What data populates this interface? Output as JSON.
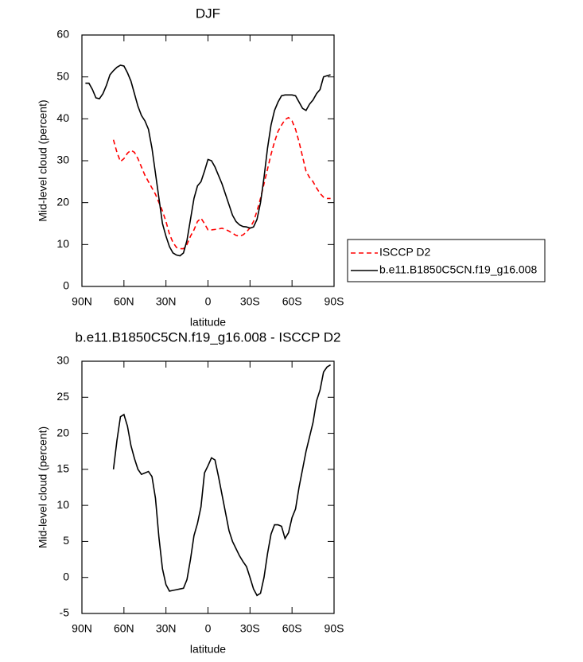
{
  "chart_data": [
    {
      "type": "line",
      "title": "DJF",
      "xlabel": "latitude",
      "ylabel": "Mid-level cloud (percent)",
      "x": [
        87.5,
        85,
        82.5,
        80,
        77.5,
        75,
        72.5,
        70,
        67.5,
        65,
        62.5,
        60,
        57.5,
        55,
        52.5,
        50,
        47.5,
        45,
        42.5,
        40,
        37.5,
        35,
        32.5,
        30,
        27.5,
        25,
        22.5,
        20,
        17.5,
        15,
        12.5,
        10,
        7.5,
        5,
        2.5,
        0,
        -2.5,
        -5,
        -7.5,
        -10,
        -12.5,
        -15,
        -17.5,
        -20,
        -22.5,
        -25,
        -27.5,
        -30,
        -32.5,
        -35,
        -37.5,
        -40,
        -42.5,
        -45,
        -47.5,
        -50,
        -52.5,
        -55,
        -57.5,
        -60,
        -62.5,
        -65,
        -67.5,
        -70,
        -72.5,
        -75,
        -77.5,
        -80,
        -82.5,
        -85,
        -87.5
      ],
      "series": [
        {
          "name": "ISCCP D2",
          "color": "#ff0000",
          "dashed": true,
          "values": [
            null,
            null,
            null,
            null,
            null,
            null,
            null,
            null,
            35,
            32,
            29.8,
            30.5,
            31.8,
            32.5,
            32,
            30.5,
            28.5,
            26.5,
            25,
            23.5,
            22,
            20,
            18,
            15.5,
            12.5,
            10.5,
            9.3,
            9,
            9,
            10,
            12,
            13.5,
            15.5,
            16.3,
            15,
            13.5,
            13.5,
            13.6,
            13.7,
            13.9,
            13.6,
            13.2,
            12.7,
            12.2,
            12,
            12.3,
            13,
            14,
            15.5,
            18,
            21,
            24.5,
            28,
            31.5,
            34.5,
            37,
            38.5,
            39.8,
            40.3,
            39.5,
            37.5,
            34.5,
            31,
            27.5,
            26,
            25,
            23.5,
            22.2,
            21.3,
            21,
            21
          ]
        },
        {
          "name": "b.e11.B1850C5CN.f19_g16.008",
          "color": "#000000",
          "dashed": false,
          "values": [
            48.5,
            48.5,
            47,
            45,
            44.8,
            46,
            48,
            50.5,
            51.5,
            52.3,
            52.8,
            52.6,
            51,
            49,
            46,
            43,
            40.8,
            39.5,
            37.5,
            33,
            27,
            21,
            15,
            12,
            9.5,
            8,
            7.5,
            7.3,
            8,
            11,
            16,
            21,
            24,
            25,
            27.5,
            30.3,
            30,
            28.5,
            26.5,
            24.5,
            22,
            19.5,
            17,
            15.5,
            14.7,
            14.3,
            14.2,
            13.9,
            14.2,
            16,
            20,
            26,
            33,
            38.5,
            42,
            44,
            45.5,
            45.7,
            45.7,
            45.7,
            45.5,
            44,
            42.5,
            42,
            43.5,
            44.5,
            46,
            47,
            50,
            50.3,
            50.5
          ]
        }
      ],
      "xlim": [
        90,
        -90
      ],
      "xticks": [
        {
          "value": 90,
          "label": "90N"
        },
        {
          "value": 60,
          "label": "60N"
        },
        {
          "value": 30,
          "label": "30N"
        },
        0,
        {
          "value": -30,
          "label": "30S"
        },
        {
          "value": -60,
          "label": "60S"
        },
        {
          "value": -90,
          "label": "90S"
        }
      ],
      "ylim": [
        0,
        60
      ],
      "yticks": [
        0,
        10,
        20,
        30,
        40,
        50,
        60
      ],
      "legend": "right"
    },
    {
      "type": "line",
      "title": "b.e11.B1850C5CN.f19_g16.008 - ISCCP D2",
      "xlabel": "latitude",
      "ylabel": "Mid-level cloud (percent)",
      "x": [
        87.5,
        85,
        82.5,
        80,
        77.5,
        75,
        72.5,
        70,
        67.5,
        65,
        62.5,
        60,
        57.5,
        55,
        52.5,
        50,
        47.5,
        45,
        42.5,
        40,
        37.5,
        35,
        32.5,
        30,
        27.5,
        25,
        22.5,
        20,
        17.5,
        15,
        12.5,
        10,
        7.5,
        5,
        2.5,
        0,
        -2.5,
        -5,
        -7.5,
        -10,
        -12.5,
        -15,
        -17.5,
        -20,
        -22.5,
        -25,
        -27.5,
        -30,
        -32.5,
        -35,
        -37.5,
        -40,
        -42.5,
        -45,
        -47.5,
        -50,
        -52.5,
        -55,
        -57.5,
        -60,
        -62.5,
        -65,
        -67.5,
        -70,
        -72.5,
        -75,
        -77.5,
        -80,
        -82.5,
        -85,
        -87.5
      ],
      "series": [
        {
          "color": "#000000",
          "dashed": false,
          "values": [
            null,
            null,
            null,
            null,
            null,
            null,
            null,
            null,
            15,
            19,
            22.3,
            22.6,
            21,
            18.3,
            16.5,
            15,
            14.3,
            14.5,
            14.7,
            14,
            11,
            5.5,
            1.2,
            -1,
            -1.9,
            -1.8,
            -1.7,
            -1.6,
            -1.5,
            -0.3,
            2.5,
            5.8,
            7.5,
            9.8,
            14.5,
            15.5,
            16.6,
            16.3,
            14,
            11.5,
            9,
            6.5,
            5,
            4,
            3,
            2.2,
            1.5,
            0,
            -1.6,
            -2.5,
            -2.2,
            0,
            3.3,
            6,
            7.3,
            7.3,
            7.1,
            5.4,
            6.2,
            8.3,
            9.5,
            12.5,
            15,
            17.5,
            19.5,
            21.5,
            24.5,
            26,
            28.5,
            29.2,
            29.5
          ]
        }
      ],
      "xlim": [
        90,
        -90
      ],
      "xticks": [
        {
          "value": 90,
          "label": "90N"
        },
        {
          "value": 60,
          "label": "60N"
        },
        {
          "value": 30,
          "label": "30N"
        },
        0,
        {
          "value": -30,
          "label": "30S"
        },
        {
          "value": -60,
          "label": "60S"
        },
        {
          "value": -90,
          "label": "90S"
        }
      ],
      "ylim": [
        -5,
        30
      ],
      "yticks": [
        -5,
        0,
        5,
        10,
        15,
        20,
        25,
        30
      ]
    }
  ]
}
